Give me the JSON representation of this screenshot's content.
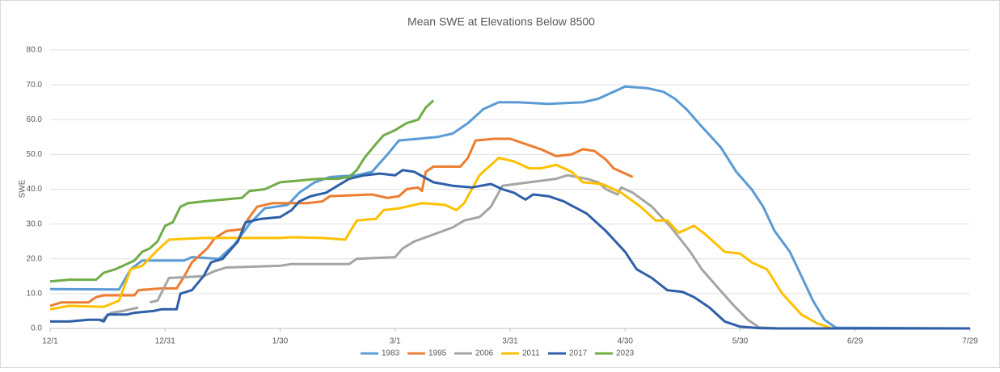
{
  "chart_data": {
    "type": "line",
    "title": "Mean SWE at Elevations Below 8500",
    "y_label": "SWE",
    "xlim": [
      0,
      240
    ],
    "xticks": [
      {
        "value": 0,
        "label": "12/1"
      },
      {
        "value": 30,
        "label": "12/31"
      },
      {
        "value": 60,
        "label": "1/30"
      },
      {
        "value": 90,
        "label": "3/1"
      },
      {
        "value": 120,
        "label": "3/31"
      },
      {
        "value": 150,
        "label": "4/30"
      },
      {
        "value": 180,
        "label": "5/30"
      },
      {
        "value": 210,
        "label": "6/29"
      },
      {
        "value": 240,
        "label": "7/29"
      }
    ],
    "ylim": [
      0,
      80
    ],
    "yticks": [
      {
        "value": 0,
        "label": "0.0"
      },
      {
        "value": 10,
        "label": "10.0"
      },
      {
        "value": 20,
        "label": "20.0"
      },
      {
        "value": 30,
        "label": "30.0"
      },
      {
        "value": 40,
        "label": "40.0"
      },
      {
        "value": 50,
        "label": "50.0"
      },
      {
        "value": 60,
        "label": "60.0"
      },
      {
        "value": 70,
        "label": "70.0"
      },
      {
        "value": 80,
        "label": "80.0"
      }
    ],
    "grid": true,
    "legend": "bottom",
    "series": [
      {
        "name": "1983",
        "color": "#5b9bd5",
        "x": [
          0,
          18,
          21,
          24,
          35,
          37,
          44,
          48,
          52,
          56,
          62,
          65,
          69,
          73,
          80,
          84,
          88,
          91,
          96,
          101,
          105,
          109,
          113,
          117,
          122,
          130,
          139,
          143,
          147,
          150,
          156,
          160,
          163,
          166,
          170,
          175,
          179,
          183,
          186,
          189,
          193,
          196,
          199,
          202,
          205,
          240
        ],
        "values": [
          11.3,
          11.2,
          17,
          19.5,
          19.5,
          20.5,
          20,
          24,
          30,
          34.5,
          35.5,
          39,
          42,
          43.5,
          44,
          45,
          50,
          54,
          54.5,
          55,
          56,
          59,
          63,
          65,
          65,
          64.5,
          65,
          66,
          68,
          69.5,
          69,
          68,
          66,
          63,
          58,
          52,
          45,
          40,
          35,
          28,
          22,
          15,
          8,
          2.5,
          0.2,
          0
        ]
      },
      {
        "name": "1995",
        "color": "#ed7d31",
        "x": [
          0,
          3,
          10,
          12,
          14,
          22,
          23,
          29,
          33,
          35,
          37,
          41,
          43,
          46,
          50,
          52,
          54,
          58,
          67,
          71,
          73,
          84,
          88,
          91,
          93,
          96,
          97,
          98,
          100,
          107,
          109,
          111,
          116,
          120,
          124,
          128,
          132,
          136,
          139,
          142,
          145,
          147,
          149,
          152
        ],
        "values": [
          6.5,
          7.5,
          7.5,
          9,
          9.5,
          9.5,
          11,
          11.5,
          11.5,
          15,
          19,
          23,
          26,
          28,
          28.5,
          32,
          35,
          36,
          36,
          36.5,
          38,
          38.5,
          37.5,
          38,
          40,
          40.5,
          39.5,
          45,
          46.5,
          46.5,
          49,
          54,
          54.5,
          54.5,
          53,
          51.5,
          49.5,
          50,
          51.5,
          51,
          48.5,
          46,
          45,
          43.5
        ]
      },
      {
        "name": "2006",
        "color": "#a5a5a5",
        "x": [
          13,
          16,
          19,
          23,
          24,
          26,
          28,
          31,
          40,
          43,
          46,
          60,
          63,
          78,
          80,
          90,
          92,
          95,
          100,
          105,
          108,
          112,
          115,
          118,
          125,
          132,
          135,
          140,
          143,
          145,
          148,
          149,
          152,
          157,
          162,
          167,
          170,
          174,
          178,
          182,
          185,
          190,
          240
        ],
        "values": [
          2,
          4.5,
          5,
          6,
          null,
          7.5,
          8,
          14.5,
          15,
          16.5,
          17.5,
          18,
          18.5,
          18.5,
          20,
          20.5,
          23,
          25,
          27,
          29,
          31,
          32,
          35,
          41,
          42,
          43,
          44,
          43,
          42,
          40,
          38.5,
          40.5,
          39,
          35,
          29,
          22,
          17,
          12,
          7,
          2.5,
          0.3,
          0,
          0
        ]
      },
      {
        "name": "2011",
        "color": "#ffc000",
        "x": [
          0,
          5,
          14,
          18,
          21,
          24,
          28,
          31,
          40,
          50,
          60,
          63,
          71,
          77,
          80,
          85,
          87,
          91,
          97,
          103,
          106,
          108,
          112,
          117,
          121,
          125,
          128,
          132,
          136,
          139,
          144,
          149,
          154,
          158,
          161,
          164,
          168,
          171,
          176,
          180,
          183,
          187,
          191,
          196,
          200,
          204,
          240
        ],
        "values": [
          5.5,
          6.5,
          6.2,
          8,
          17,
          18,
          22.5,
          25.5,
          26,
          26,
          26,
          26.2,
          26,
          25.5,
          31,
          31.5,
          34,
          34.5,
          36,
          35.5,
          34,
          36,
          44,
          49,
          48,
          46,
          46,
          47,
          45,
          42,
          41.5,
          39,
          35,
          31,
          31,
          27.5,
          29.5,
          27,
          22,
          21.5,
          19,
          17,
          10,
          4,
          1.5,
          0,
          0
        ]
      },
      {
        "name": "2017",
        "color": "#2e5fa8",
        "x": [
          0,
          5,
          10,
          13,
          14,
          15,
          20,
          22,
          27,
          29,
          33,
          34,
          37,
          40,
          42,
          45,
          49,
          51,
          55,
          60,
          63,
          65,
          68,
          72,
          75,
          78,
          82,
          86,
          90,
          92,
          95,
          100,
          105,
          110,
          115,
          118,
          121,
          124,
          126,
          130,
          134,
          140,
          145,
          150,
          153,
          157,
          161,
          165,
          168,
          172,
          176,
          180,
          185,
          190,
          240
        ],
        "values": [
          2,
          2,
          2.5,
          2.5,
          2,
          4,
          4,
          4.5,
          5,
          5.5,
          5.5,
          10,
          11,
          15,
          19,
          20,
          25,
          30.5,
          31.5,
          32,
          34,
          36.5,
          38,
          39,
          41,
          43,
          44,
          44.5,
          44,
          45.5,
          45,
          42,
          41,
          40.5,
          41.5,
          40,
          39,
          37,
          38.5,
          38,
          36.5,
          33,
          28,
          22,
          17,
          14.5,
          11,
          10.5,
          9,
          6,
          2,
          0.5,
          0.1,
          0,
          0
        ]
      },
      {
        "name": "2023",
        "color": "#70ad47",
        "x": [
          0,
          5,
          12,
          14,
          17,
          20,
          22,
          24,
          26,
          28,
          30,
          32,
          34,
          36,
          40,
          45,
          50,
          52,
          56,
          60,
          65,
          70,
          75,
          78,
          80,
          82,
          85,
          87,
          90,
          93,
          96,
          98,
          100
        ],
        "values": [
          13.5,
          14,
          14,
          16,
          17,
          18.5,
          19.5,
          22,
          23,
          25,
          29.5,
          30.5,
          35,
          36,
          36.5,
          37,
          37.5,
          39.5,
          40,
          42,
          42.5,
          43,
          43,
          43.5,
          45.5,
          49,
          53,
          55.5,
          57,
          59,
          60,
          63.5,
          65.5
        ]
      }
    ]
  }
}
